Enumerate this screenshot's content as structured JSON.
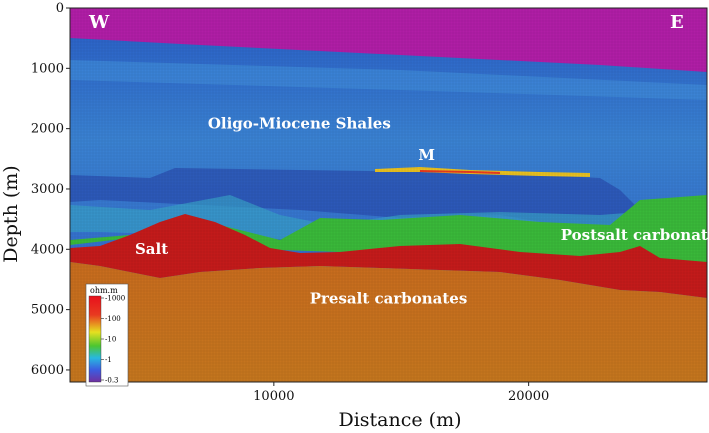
{
  "chart_data": {
    "type": "heatmap",
    "title": "",
    "xlabel": "Distance (m)",
    "ylabel": "Depth (m)",
    "xlim": [
      2000,
      27000
    ],
    "ylim": [
      0,
      6200
    ],
    "y_inverted": true,
    "x_ticks": [
      10000,
      20000
    ],
    "y_ticks": [
      0,
      1000,
      2000,
      3000,
      4000,
      5000,
      6000
    ],
    "direction_labels": {
      "west": "W",
      "east": "E"
    },
    "regions": [
      {
        "name": "Oligo-Miocene Shales",
        "x": 11000,
        "depth": 2000
      },
      {
        "name": "M",
        "x": 16000,
        "depth": 2520
      },
      {
        "name": "Salt",
        "x": 5200,
        "depth": 4080
      },
      {
        "name": "Postsalt carbonates",
        "x": 24500,
        "depth": 3850
      },
      {
        "name": "Presalt carbonates",
        "x": 14500,
        "depth": 4900
      }
    ],
    "colorbar": {
      "unit": "ohm.m",
      "ticks": [
        "1000",
        "100",
        "10",
        "1",
        "0.3"
      ],
      "scale": "log",
      "colors": [
        "#e8101c",
        "#e83a20",
        "#e6e020",
        "#4cc630",
        "#28b8e0",
        "#3c5ce0",
        "#7030a0"
      ]
    },
    "layer_colors": {
      "water": "#b01ea6",
      "shales": "#3a78d0",
      "postsalt": "#3ab83a",
      "salt": "#c41a1a",
      "presalt": "#c9701e"
    }
  }
}
